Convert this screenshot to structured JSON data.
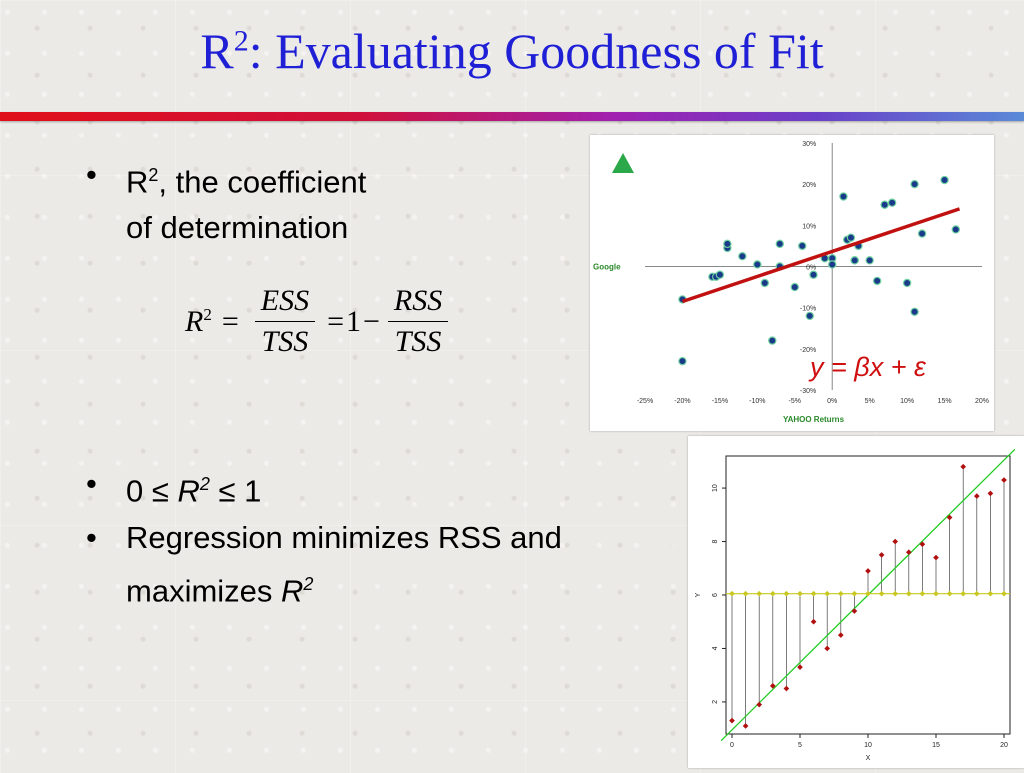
{
  "title": {
    "main": "R",
    "sup": "2",
    "rest": ": Evaluating Goodness of Fit"
  },
  "bullets": {
    "b1_line1_a": "R",
    "b1_line1_sup": "2",
    "b1_line1_b": ", the coefficient",
    "b1_line2": "of determination",
    "b2_pre": "0 ",
    "b2_le": "≤",
    "b2_R": "R",
    "b2_sup": "2",
    "b2_le2": "≤",
    "b2_post": " 1",
    "b3_line1": "Regression minimizes RSS and",
    "b3_line2_a": "maximizes ",
    "b3_line2_R": "R",
    "b3_line2_sup": "2"
  },
  "formula": {
    "lhs": "R",
    "lhs_sup": "2",
    "eq": "=",
    "num1": "ESS",
    "den1": "TSS",
    "eq2": "=",
    "one": "1",
    "minus": "−",
    "num2": "RSS",
    "den2": "TSS"
  },
  "chart_data": [
    {
      "type": "scatter",
      "xlabel": "YAHOO Returns",
      "ylabel": "Google",
      "annotation": "y = βx + ε",
      "xlim": [
        -0.25,
        0.2
      ],
      "ylim": [
        -0.3,
        0.3
      ],
      "xticks": [
        "-25%",
        "-20%",
        "-15%",
        "-10%",
        "-5%",
        "0%",
        "5%",
        "10%",
        "15%",
        "20%"
      ],
      "yticks": [
        "30%",
        "20%",
        "10%",
        "0%",
        "-10%",
        "-20%",
        "-30%"
      ],
      "fit_line": {
        "x": [
          -0.2,
          0.17
        ],
        "y": [
          -0.085,
          0.14
        ]
      },
      "colors": {
        "points": "#1a3a8a",
        "fit": "#c01010",
        "axis_label": "#2a8a2a"
      },
      "x": [
        -0.2,
        -0.2,
        -0.16,
        -0.155,
        -0.15,
        -0.14,
        -0.14,
        -0.12,
        -0.1,
        -0.09,
        -0.08,
        -0.07,
        -0.07,
        -0.05,
        -0.04,
        -0.03,
        -0.025,
        -0.01,
        0.0,
        0.0,
        0.015,
        0.02,
        0.025,
        0.03,
        0.03,
        0.035,
        0.05,
        0.06,
        0.07,
        0.08,
        0.1,
        0.11,
        0.11,
        0.12,
        0.15,
        0.165
      ],
      "y": [
        -0.08,
        -0.23,
        -0.025,
        -0.025,
        -0.02,
        0.045,
        0.055,
        0.025,
        0.005,
        -0.04,
        -0.18,
        0.055,
        0.0,
        -0.05,
        0.05,
        -0.12,
        -0.02,
        0.02,
        0.02,
        0.005,
        0.17,
        0.065,
        0.07,
        0.015,
        0.015,
        0.05,
        0.015,
        -0.035,
        0.15,
        0.155,
        -0.04,
        0.2,
        -0.11,
        0.08,
        0.21,
        0.09
      ]
    },
    {
      "type": "scatter",
      "xlabel": "X",
      "ylabel": "Y",
      "xlim": [
        0,
        20
      ],
      "ylim": [
        0.8,
        11.2
      ],
      "xticks": [
        "0",
        "5",
        "10",
        "15",
        "20"
      ],
      "yticks": [
        "2",
        "4",
        "6",
        "8",
        "10"
      ],
      "mean_y": 6.05,
      "fit_line": {
        "x": [
          -0.8,
          20.8
        ],
        "y": [
          0.55,
          11.45
        ]
      },
      "colors": {
        "points": "#b01010",
        "mean_points": "#c8c820",
        "fit": "#22cc22"
      },
      "x": [
        0,
        1,
        2,
        3,
        4,
        5,
        6,
        7,
        8,
        9,
        10,
        11,
        12,
        13,
        14,
        15,
        16,
        17,
        18,
        19,
        20
      ],
      "y": [
        1.3,
        1.1,
        1.9,
        2.6,
        2.5,
        3.3,
        5.0,
        4.0,
        4.5,
        5.4,
        6.9,
        7.5,
        8.0,
        7.6,
        7.9,
        7.4,
        8.9,
        10.8,
        9.7,
        9.8,
        10.3
      ]
    }
  ]
}
